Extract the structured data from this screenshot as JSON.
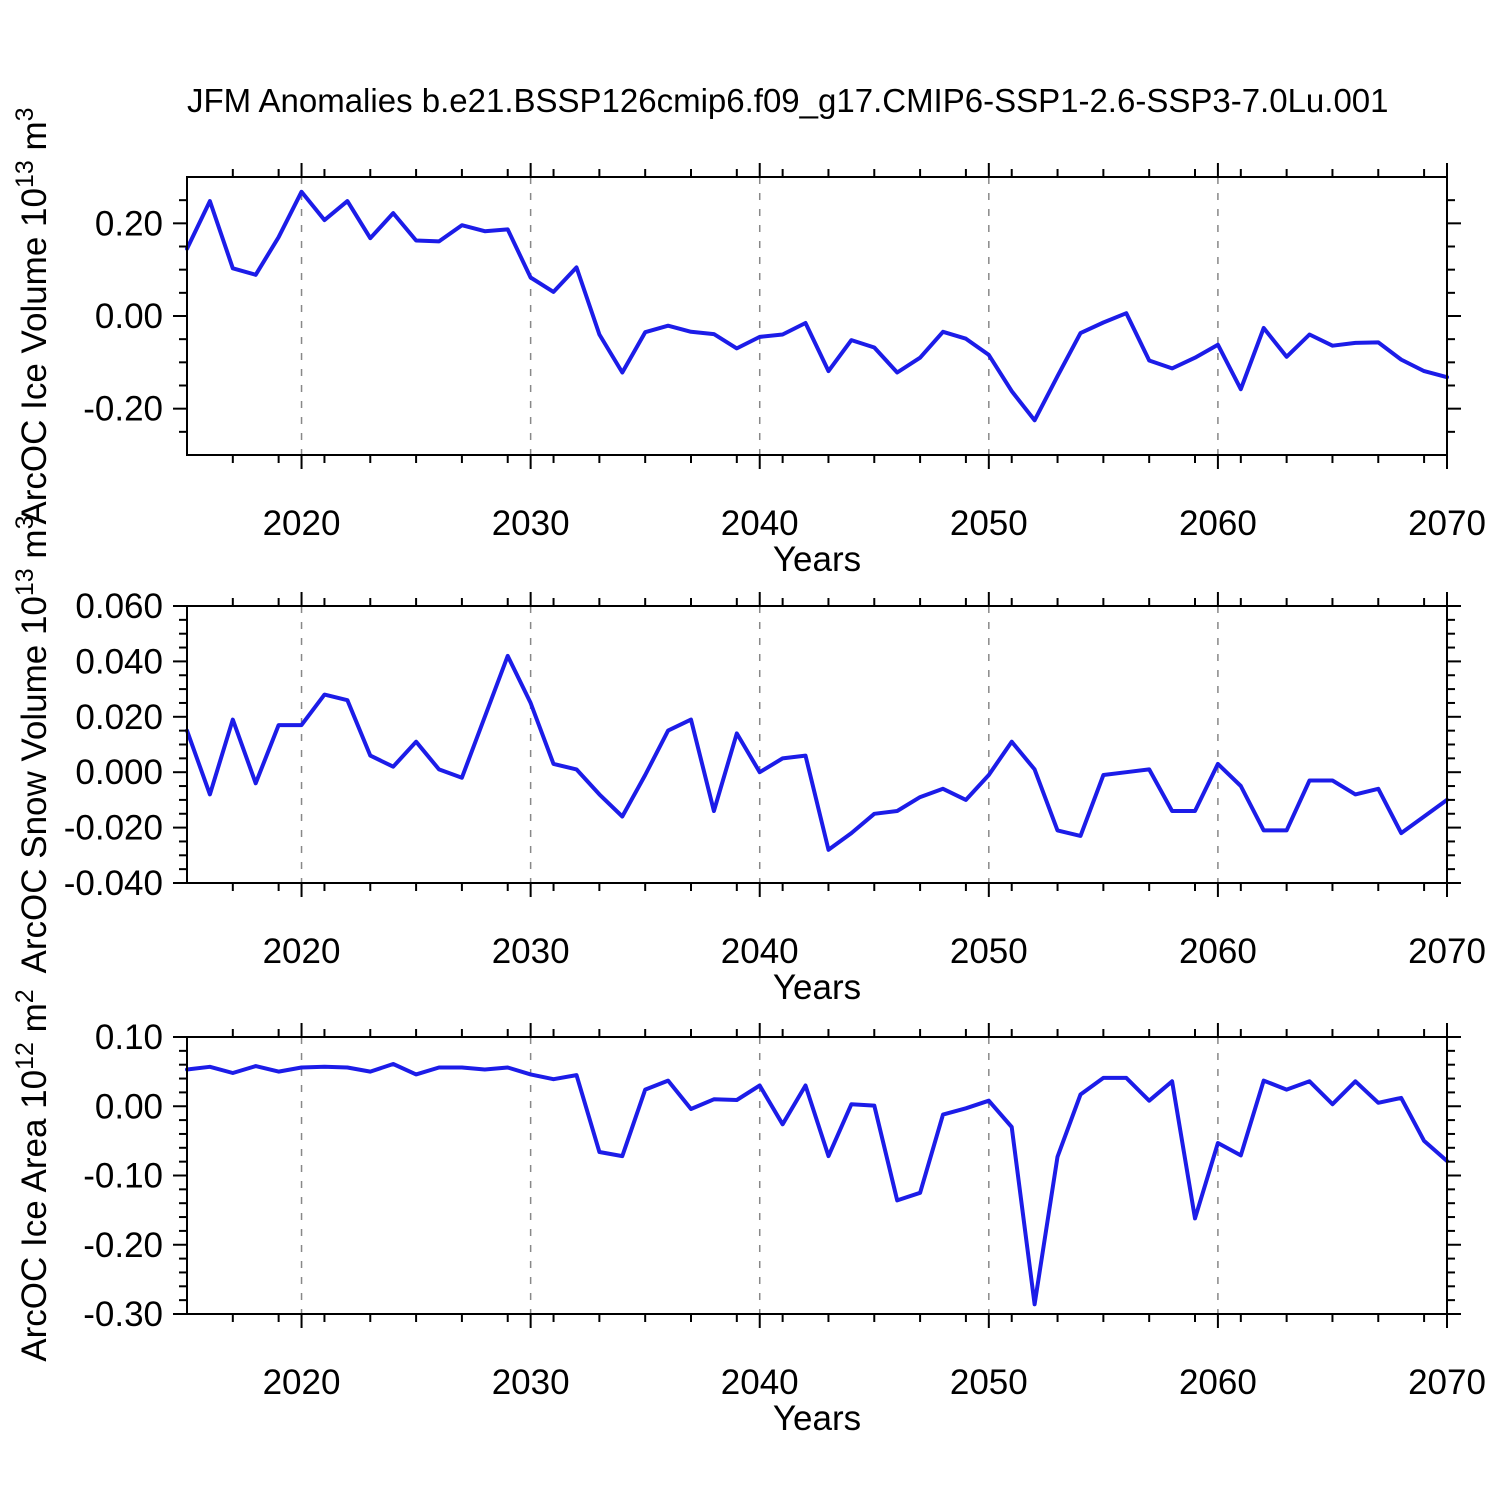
{
  "title": "JFM Anomalies b.e21.BSSP126cmip6.f09_g17.CMIP6-SSP1-2.6-SSP3-7.0Lu.001",
  "line_color": "#1c1ce8",
  "grid_color": "#888888",
  "axis_color": "#000000",
  "x_axis": {
    "label": "Years",
    "start": 2015,
    "end": 2070,
    "major_ticks": [
      2020,
      2030,
      2040,
      2050,
      2060,
      2070
    ],
    "major_tick_labels": [
      "2020",
      "2030",
      "2040",
      "2050",
      "2060",
      "2070"
    ],
    "minor_step": 2,
    "grid_years": [
      2020,
      2030,
      2040,
      2050,
      2060
    ]
  },
  "years": [
    2015,
    2016,
    2017,
    2018,
    2019,
    2020,
    2021,
    2022,
    2023,
    2024,
    2025,
    2026,
    2027,
    2028,
    2029,
    2030,
    2031,
    2032,
    2033,
    2034,
    2035,
    2036,
    2037,
    2038,
    2039,
    2040,
    2041,
    2042,
    2043,
    2044,
    2045,
    2046,
    2047,
    2048,
    2049,
    2050,
    2051,
    2052,
    2053,
    2054,
    2055,
    2056,
    2057,
    2058,
    2059,
    2060,
    2061,
    2062,
    2063,
    2064,
    2065,
    2066,
    2067,
    2068,
    2069,
    2070
  ],
  "chart_data": [
    {
      "type": "line",
      "id": "ice-volume",
      "ylabel_text": "ArcOC Ice Volume 10^13 m^3",
      "ylabel_parts": [
        {
          "t": "ArcOC Ice Volume 10",
          "sup": false
        },
        {
          "t": "13",
          "sup": true
        },
        {
          "t": " m",
          "sup": false
        },
        {
          "t": "3",
          "sup": true
        }
      ],
      "ylim": [
        -0.3,
        0.3
      ],
      "ytick_major": [
        {
          "value": 0.2,
          "label": "0.20"
        },
        {
          "value": 0.0,
          "label": "0.00"
        },
        {
          "value": -0.2,
          "label": "-0.20"
        }
      ],
      "ytick_minor_step": 0.05,
      "values": [
        0.145,
        0.248,
        0.103,
        0.089,
        0.17,
        0.268,
        0.207,
        0.248,
        0.168,
        0.222,
        0.163,
        0.161,
        0.196,
        0.183,
        0.187,
        0.083,
        0.052,
        0.105,
        -0.04,
        -0.122,
        -0.035,
        -0.021,
        -0.034,
        -0.039,
        -0.07,
        -0.045,
        -0.04,
        -0.015,
        -0.119,
        -0.052,
        -0.068,
        -0.122,
        -0.09,
        -0.034,
        -0.049,
        -0.084,
        -0.162,
        -0.225,
        -0.13,
        -0.037,
        -0.014,
        0.006,
        -0.096,
        -0.113,
        -0.09,
        -0.062,
        -0.158,
        -0.026,
        -0.088,
        -0.04,
        -0.064,
        -0.058,
        -0.057,
        -0.094,
        -0.119,
        -0.132
      ]
    },
    {
      "type": "line",
      "id": "snow-volume",
      "ylabel_text": "ArcOC Snow Volume 10^13 m^3",
      "ylabel_parts": [
        {
          "t": "ArcOC Snow Volume 10",
          "sup": false
        },
        {
          "t": "13",
          "sup": true
        },
        {
          "t": " m",
          "sup": false
        },
        {
          "t": "3",
          "sup": true
        }
      ],
      "ylim": [
        -0.04,
        0.06
      ],
      "ytick_major": [
        {
          "value": 0.06,
          "label": "0.060"
        },
        {
          "value": 0.04,
          "label": "0.040"
        },
        {
          "value": 0.02,
          "label": "0.020"
        },
        {
          "value": 0.0,
          "label": "0.000"
        },
        {
          "value": -0.02,
          "label": "-0.020"
        },
        {
          "value": -0.04,
          "label": "-0.040"
        }
      ],
      "ytick_minor_step": 0.005,
      "values": [
        0.015,
        -0.008,
        0.019,
        -0.004,
        0.017,
        0.017,
        0.028,
        0.026,
        0.006,
        0.002,
        0.011,
        0.001,
        -0.002,
        0.02,
        0.042,
        0.025,
        0.003,
        0.001,
        -0.008,
        -0.016,
        -0.001,
        0.015,
        0.019,
        -0.014,
        0.014,
        0.0,
        0.005,
        0.006,
        -0.028,
        -0.022,
        -0.015,
        -0.014,
        -0.009,
        -0.006,
        -0.01,
        -0.001,
        0.011,
        0.001,
        -0.021,
        -0.023,
        -0.001,
        0.0,
        0.001,
        -0.014,
        -0.014,
        0.003,
        -0.005,
        -0.021,
        -0.021,
        -0.003,
        -0.003,
        -0.008,
        -0.006,
        -0.022,
        -0.016,
        -0.01
      ]
    },
    {
      "type": "line",
      "id": "ice-area",
      "ylabel_text": "ArcOC Ice Area 10^12 m^2",
      "ylabel_parts": [
        {
          "t": "ArcOC Ice Area 10",
          "sup": false
        },
        {
          "t": "12",
          "sup": true
        },
        {
          "t": " m",
          "sup": false
        },
        {
          "t": "2",
          "sup": true
        }
      ],
      "ylim": [
        -0.3,
        0.1
      ],
      "ytick_major": [
        {
          "value": 0.1,
          "label": "0.10"
        },
        {
          "value": 0.0,
          "label": "0.00"
        },
        {
          "value": -0.1,
          "label": "-0.10"
        },
        {
          "value": -0.2,
          "label": "-0.20"
        },
        {
          "value": -0.3,
          "label": "-0.30"
        }
      ],
      "ytick_minor_step": 0.02,
      "values": [
        0.053,
        0.057,
        0.048,
        0.058,
        0.05,
        0.056,
        0.057,
        0.056,
        0.05,
        0.061,
        0.046,
        0.056,
        0.056,
        0.053,
        0.056,
        0.046,
        0.039,
        0.045,
        -0.066,
        -0.072,
        0.024,
        0.037,
        -0.004,
        0.01,
        0.009,
        0.03,
        -0.026,
        0.03,
        -0.072,
        0.003,
        0.001,
        -0.136,
        -0.125,
        -0.012,
        -0.003,
        0.008,
        -0.03,
        -0.286,
        -0.073,
        0.017,
        0.041,
        0.041,
        0.008,
        0.036,
        -0.162,
        -0.053,
        -0.071,
        0.037,
        0.024,
        0.036,
        0.003,
        0.036,
        0.005,
        0.012,
        -0.05,
        -0.079
      ]
    }
  ]
}
